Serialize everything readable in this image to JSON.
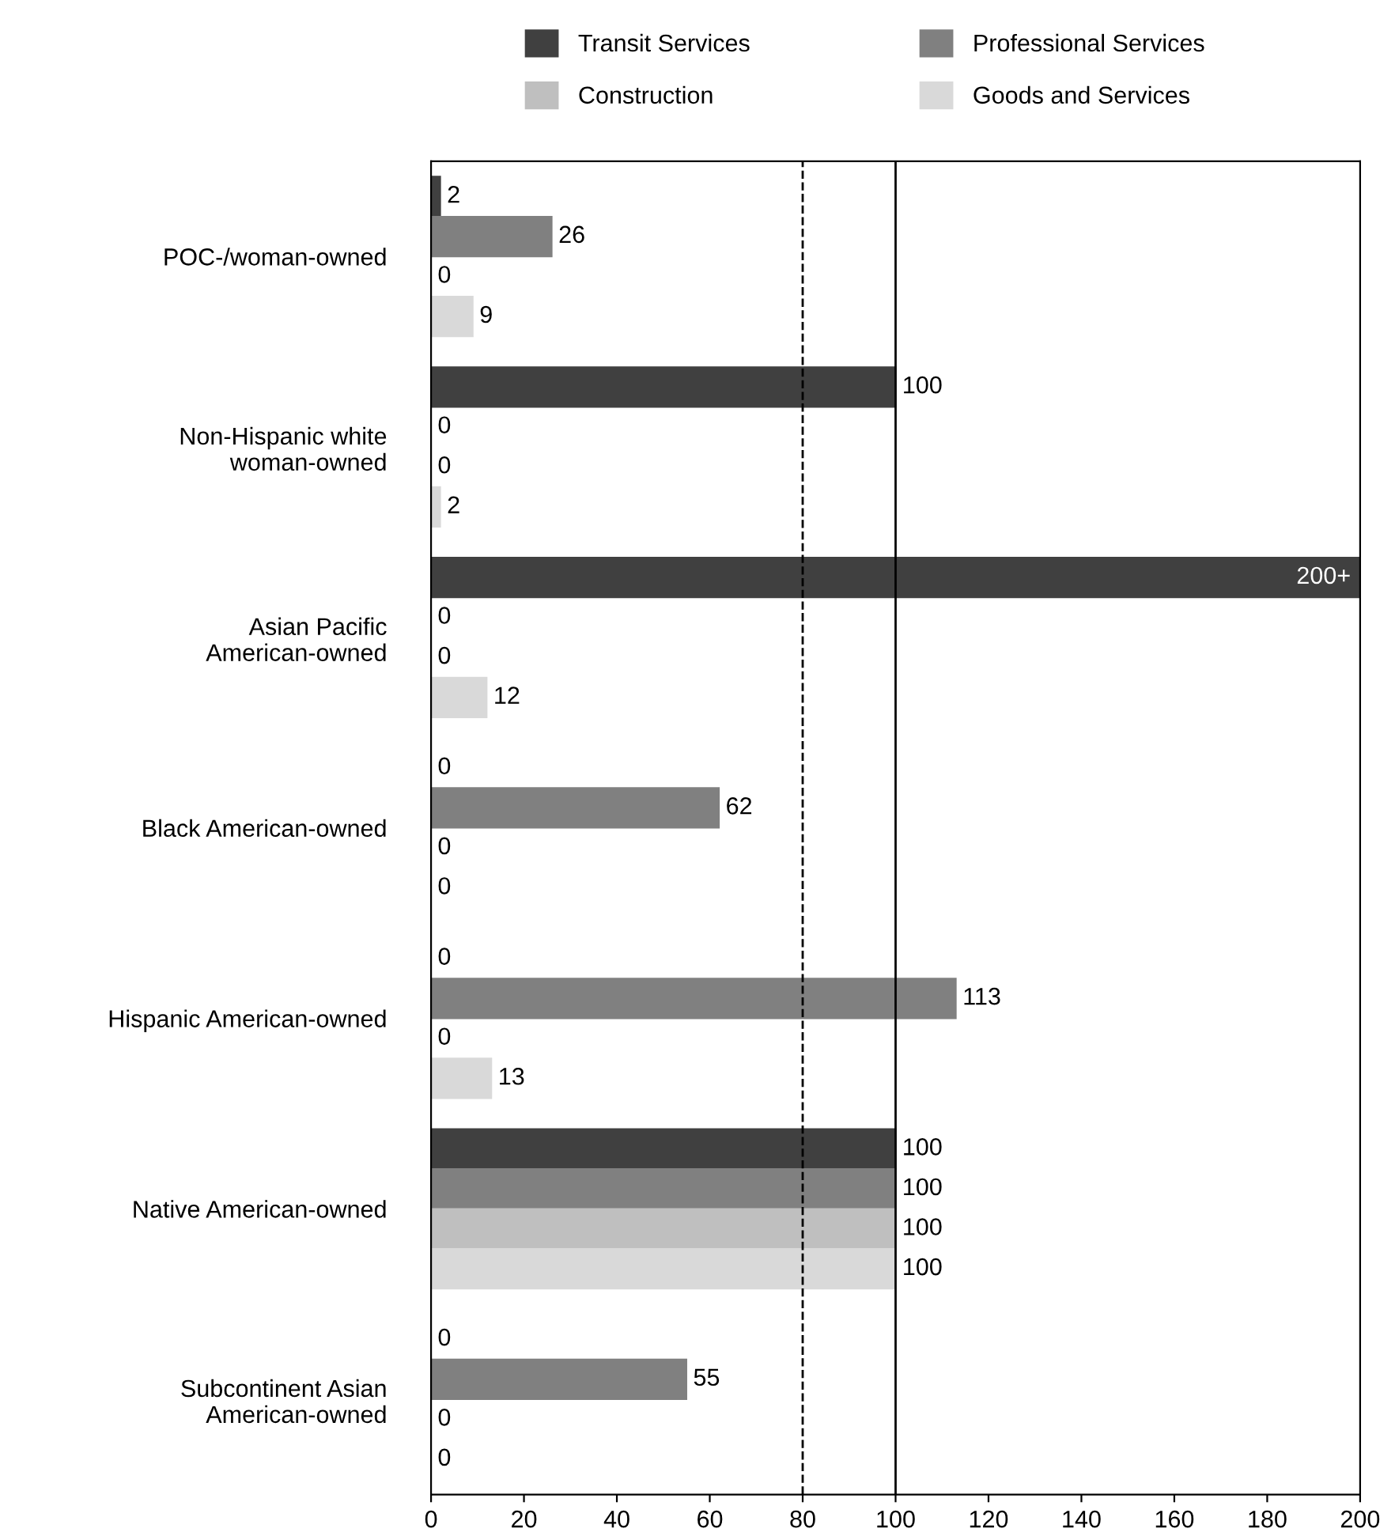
{
  "chart_data": {
    "type": "bar",
    "orientation": "horizontal",
    "categories": [
      "POC-/woman-owned",
      "Non-Hispanic white\nwoman-owned",
      "Asian Pacific\nAmerican-owned",
      "Black American-owned",
      "Hispanic American-owned",
      "Native American-owned",
      "Subcontinent Asian\nAmerican-owned"
    ],
    "series": [
      {
        "name": "Transit Services",
        "color": "#404040",
        "values": [
          2,
          100,
          200,
          0,
          0,
          100,
          0
        ],
        "value_labels": [
          "2",
          "100",
          "200+",
          "0",
          "0",
          "100",
          "0"
        ]
      },
      {
        "name": "Professional Services",
        "color": "#808080",
        "values": [
          26,
          0,
          0,
          62,
          113,
          100,
          55
        ],
        "value_labels": [
          "26",
          "0",
          "0",
          "62",
          "113",
          "100",
          "55"
        ]
      },
      {
        "name": "Construction",
        "color": "#bfbfbf",
        "values": [
          0,
          0,
          0,
          0,
          0,
          100,
          0
        ],
        "value_labels": [
          "0",
          "0",
          "0",
          "0",
          "0",
          "100",
          "0"
        ]
      },
      {
        "name": "Goods and Services",
        "color": "#d9d9d9",
        "values": [
          9,
          2,
          12,
          0,
          13,
          100,
          0
        ],
        "value_labels": [
          "9",
          "2",
          "12",
          "0",
          "13",
          "100",
          "0"
        ]
      }
    ],
    "xlim": [
      0,
      200
    ],
    "xticks": [
      0,
      20,
      40,
      60,
      80,
      100,
      120,
      140,
      160,
      180,
      200
    ],
    "ref_lines": [
      {
        "axis": "x",
        "value": 80,
        "color": "#000000",
        "line_style": "dashed"
      },
      {
        "axis": "x",
        "value": 100,
        "color": "#000000",
        "line_style": "solid"
      }
    ],
    "grid": false,
    "legend": "top"
  }
}
